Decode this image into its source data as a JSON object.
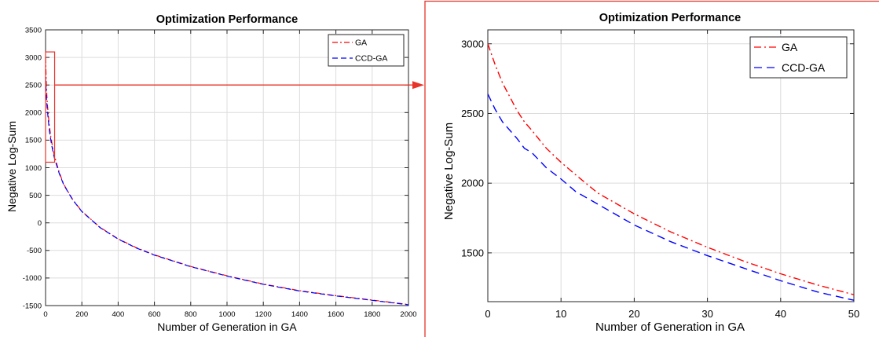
{
  "colors": {
    "ga": "#ff0000",
    "ccd_ga": "#0000ff",
    "callout": "#e8332a",
    "grid": "#dcdcdc"
  },
  "chart_data": [
    {
      "type": "line",
      "title": "Optimization Performance",
      "xlabel": "Number of Generation in GA",
      "ylabel": "Negative Log-Sum",
      "xlim": [
        0,
        2000
      ],
      "ylim": [
        -1500,
        3500
      ],
      "xticks": [
        0,
        200,
        400,
        600,
        800,
        1000,
        1200,
        1400,
        1600,
        1800,
        2000
      ],
      "yticks": [
        -1500,
        -1000,
        -500,
        0,
        500,
        1000,
        1500,
        2000,
        2500,
        3000,
        3500
      ],
      "grid": true,
      "legend_position": "top-right",
      "zoom_region": {
        "x": [
          0,
          50
        ],
        "y": [
          1100,
          3100
        ]
      },
      "series": [
        {
          "name": "GA",
          "style": "dash-dot",
          "color": "#ff0000",
          "x": [
            0,
            5,
            10,
            20,
            30,
            40,
            50,
            75,
            100,
            150,
            200,
            300,
            400,
            500,
            600,
            800,
            1000,
            1200,
            1400,
            1600,
            1800,
            2000
          ],
          "y": [
            3000,
            2430,
            2150,
            1780,
            1540,
            1350,
            1200,
            920,
            700,
            420,
            210,
            -80,
            -290,
            -450,
            -580,
            -790,
            -960,
            -1110,
            -1230,
            -1320,
            -1400,
            -1480
          ]
        },
        {
          "name": "CCD-GA",
          "style": "dashed",
          "color": "#0000ff",
          "x": [
            0,
            5,
            10,
            20,
            30,
            40,
            50,
            75,
            100,
            150,
            200,
            300,
            400,
            500,
            600,
            800,
            1000,
            1200,
            1400,
            1600,
            1800,
            2000
          ],
          "y": [
            2640,
            2260,
            2040,
            1700,
            1480,
            1300,
            1160,
            900,
            690,
            415,
            205,
            -85,
            -295,
            -455,
            -585,
            -795,
            -965,
            -1115,
            -1235,
            -1325,
            -1405,
            -1485
          ]
        }
      ]
    },
    {
      "type": "line",
      "title": "Optimization Performance",
      "xlabel": "Number of Generation in GA",
      "ylabel": "Negative Log-Sum",
      "xlim": [
        0,
        50
      ],
      "ylim": [
        1150,
        3100
      ],
      "xticks": [
        0,
        10,
        20,
        30,
        40,
        50
      ],
      "yticks": [
        1500,
        2000,
        2500,
        3000
      ],
      "grid": true,
      "legend_position": "top-right",
      "series": [
        {
          "name": "GA",
          "style": "dash-dot",
          "color": "#ff0000",
          "x": [
            0,
            1,
            2,
            3,
            4,
            5,
            6,
            8,
            10,
            12,
            15,
            20,
            25,
            30,
            35,
            40,
            45,
            50
          ],
          "y": [
            3000,
            2850,
            2720,
            2620,
            2520,
            2440,
            2380,
            2250,
            2150,
            2060,
            1930,
            1780,
            1650,
            1540,
            1440,
            1350,
            1270,
            1200
          ]
        },
        {
          "name": "CCD-GA",
          "style": "dashed",
          "color": "#0000ff",
          "x": [
            0,
            1,
            2,
            3,
            4,
            5,
            6,
            8,
            10,
            12,
            15,
            20,
            25,
            30,
            35,
            40,
            45,
            50
          ],
          "y": [
            2640,
            2530,
            2440,
            2380,
            2320,
            2250,
            2220,
            2110,
            2030,
            1940,
            1850,
            1700,
            1580,
            1480,
            1390,
            1300,
            1220,
            1160
          ]
        }
      ]
    }
  ]
}
